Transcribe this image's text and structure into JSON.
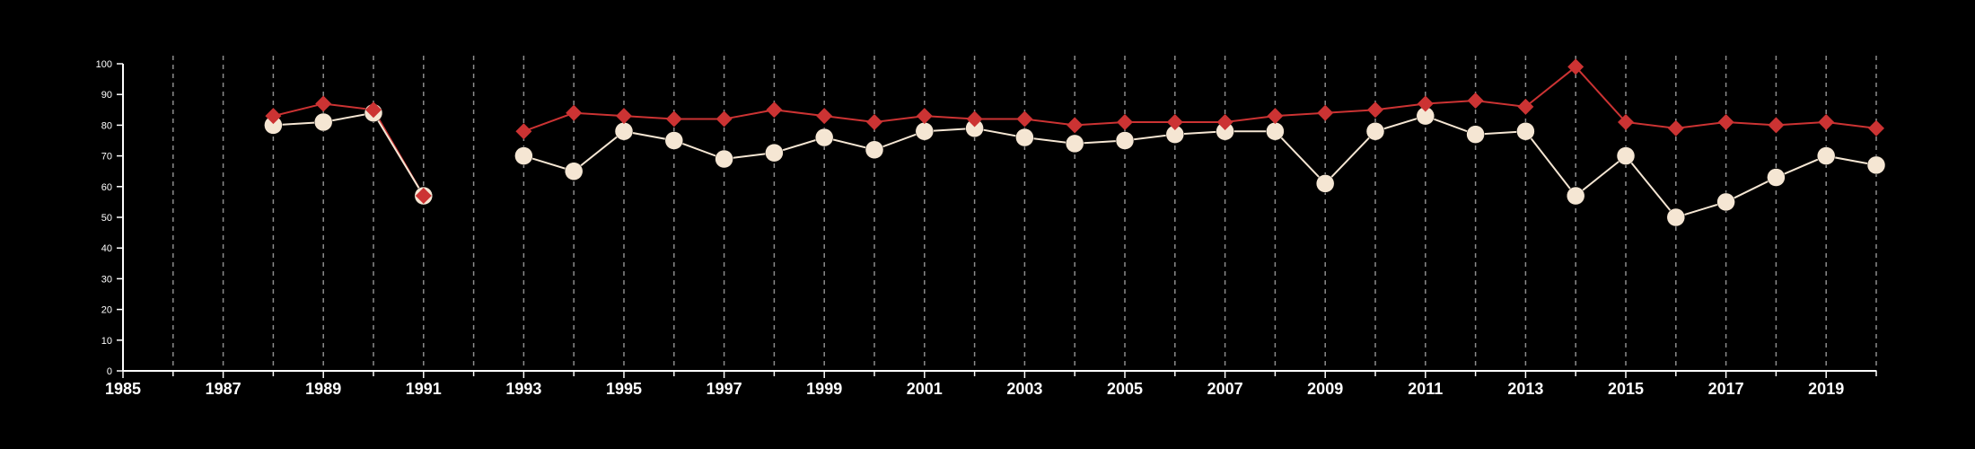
{
  "chart_data": {
    "type": "line",
    "title": "",
    "xlabel": "",
    "ylabel": "",
    "xlim": [
      1985,
      2020
    ],
    "ylim": [
      0,
      100
    ],
    "x_ticks": [
      1985,
      1987,
      1989,
      1991,
      1993,
      1995,
      1997,
      1999,
      2001,
      2003,
      2005,
      2007,
      2009,
      2011,
      2013,
      2015,
      2017,
      2019
    ],
    "y_ticks": [
      0,
      10,
      20,
      30,
      40,
      50,
      60,
      70,
      80,
      90,
      100
    ],
    "vertical_grid": true,
    "legend": "none",
    "series": [
      {
        "color": "#cc3333",
        "marker": "diamond",
        "points": [
          [
            1988,
            83
          ],
          [
            1989,
            87
          ],
          [
            1990,
            85
          ],
          [
            1991,
            57
          ],
          [
            1993,
            78
          ],
          [
            1994,
            84
          ],
          [
            1995,
            83
          ],
          [
            1996,
            82
          ],
          [
            1997,
            82
          ],
          [
            1998,
            85
          ],
          [
            1999,
            83
          ],
          [
            2000,
            81
          ],
          [
            2001,
            83
          ],
          [
            2002,
            82
          ],
          [
            2003,
            82
          ],
          [
            2004,
            80
          ],
          [
            2005,
            81
          ],
          [
            2006,
            81
          ],
          [
            2007,
            81
          ],
          [
            2008,
            83
          ],
          [
            2009,
            84
          ],
          [
            2010,
            85
          ],
          [
            2011,
            87
          ],
          [
            2012,
            88
          ],
          [
            2013,
            86
          ],
          [
            2014,
            99
          ],
          [
            2015,
            81
          ],
          [
            2016,
            79
          ],
          [
            2017,
            81
          ],
          [
            2018,
            80
          ],
          [
            2019,
            81
          ],
          [
            2020,
            79
          ]
        ]
      },
      {
        "color": "#f5e6d3",
        "marker": "circle",
        "points": [
          [
            1988,
            80
          ],
          [
            1989,
            81
          ],
          [
            1990,
            84
          ],
          [
            1991,
            57
          ],
          [
            1993,
            70
          ],
          [
            1994,
            65
          ],
          [
            1995,
            78
          ],
          [
            1996,
            75
          ],
          [
            1997,
            69
          ],
          [
            1998,
            71
          ],
          [
            1999,
            76
          ],
          [
            2000,
            72
          ],
          [
            2001,
            78
          ],
          [
            2002,
            79
          ],
          [
            2003,
            76
          ],
          [
            2004,
            74
          ],
          [
            2005,
            75
          ],
          [
            2006,
            77
          ],
          [
            2007,
            78
          ],
          [
            2008,
            78
          ],
          [
            2009,
            61
          ],
          [
            2010,
            78
          ],
          [
            2011,
            83
          ],
          [
            2012,
            77
          ],
          [
            2013,
            78
          ],
          [
            2014,
            57
          ],
          [
            2015,
            70
          ],
          [
            2016,
            50
          ],
          [
            2017,
            55
          ],
          [
            2018,
            63
          ],
          [
            2019,
            70
          ],
          [
            2020,
            67
          ]
        ]
      }
    ]
  }
}
